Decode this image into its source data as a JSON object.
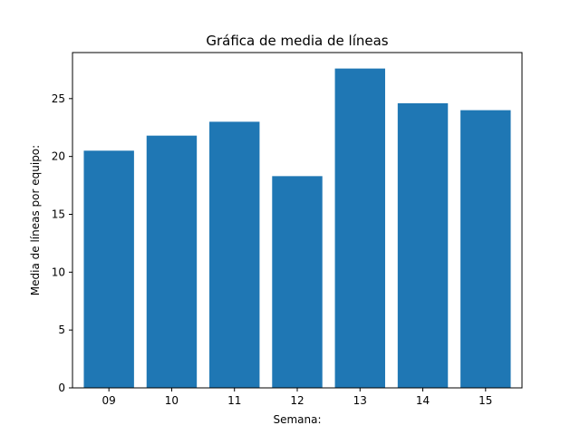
{
  "chart_data": {
    "type": "bar",
    "title": "Gráfica de media de líneas",
    "xlabel": "Semana:",
    "ylabel": "Media de líneas por equipo:",
    "categories": [
      "09",
      "10",
      "11",
      "12",
      "13",
      "14",
      "15"
    ],
    "values": [
      20.5,
      21.8,
      23.0,
      18.3,
      27.6,
      24.6,
      24.0
    ],
    "ylim": [
      0,
      28.98
    ],
    "yticks": [
      "0",
      "5",
      "10",
      "15",
      "20",
      "25"
    ],
    "bar_color": "#1f77b4",
    "grid": false,
    "legend": "none"
  }
}
